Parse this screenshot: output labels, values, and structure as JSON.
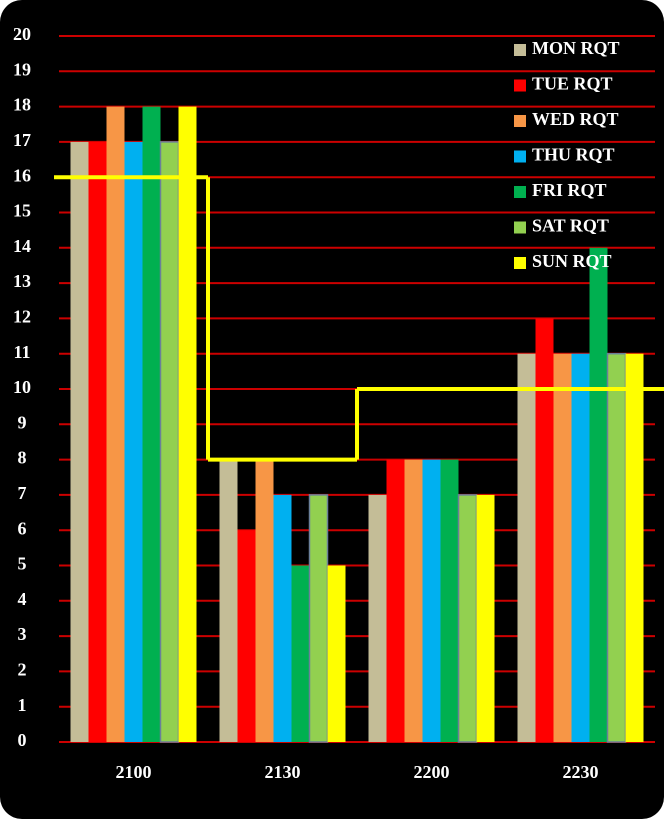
{
  "chart_data": {
    "type": "bar",
    "categories": [
      "2100",
      "2130",
      "2200",
      "2230"
    ],
    "series": [
      {
        "name": "MON RQT",
        "color": "#c4bd97",
        "values": [
          17,
          8,
          7,
          11
        ]
      },
      {
        "name": "TUE RQT",
        "color": "#ff0000",
        "values": [
          17,
          6,
          8,
          12
        ]
      },
      {
        "name": "WED RQT",
        "color": "#f79646",
        "values": [
          18,
          8,
          8,
          11
        ]
      },
      {
        "name": "THU RQT",
        "color": "#00b0f0",
        "values": [
          17,
          7,
          8,
          11
        ]
      },
      {
        "name": "FRI RQT",
        "color": "#00b050",
        "values": [
          18,
          5,
          8,
          14
        ]
      },
      {
        "name": "SAT RQT",
        "color": "#92d050",
        "values": [
          17,
          7,
          7,
          11
        ]
      },
      {
        "name": "SUN RQT",
        "color": "#ffff00",
        "values": [
          18,
          5,
          7,
          11
        ]
      }
    ],
    "step_line": {
      "color": "#ffff00",
      "values": [
        16,
        8,
        10,
        10
      ]
    },
    "ylim": [
      0,
      20
    ],
    "yticks": [
      0,
      1,
      2,
      3,
      4,
      5,
      6,
      7,
      8,
      9,
      10,
      11,
      12,
      13,
      14,
      15,
      16,
      17,
      18,
      19,
      20
    ],
    "grid": true,
    "grid_color": "#cc0000",
    "legend": "top-right"
  }
}
